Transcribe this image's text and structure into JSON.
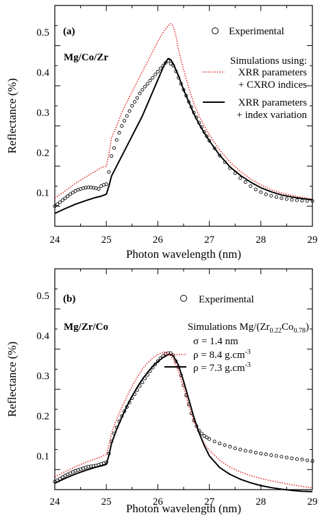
{
  "chart_data": [
    {
      "type": "line",
      "panel": "(a)",
      "sample": "Mg/Co/Zr",
      "xlabel": "Photon wavelength (nm)",
      "ylabel": "Reflectance (%)",
      "xlim": [
        24,
        29
      ],
      "ylim": [
        0.05,
        0.6
      ],
      "xticks": [
        24,
        25,
        26,
        27,
        28,
        29
      ],
      "yticks": [
        0.1,
        0.2,
        0.3,
        0.4,
        0.5
      ],
      "legend": {
        "experimental": "Experimental",
        "heading": "Simulations using:",
        "entries": [
          {
            "line1": "XRR parameters",
            "line2": "+ CXRO indices"
          },
          {
            "line1": "XRR parameters",
            "line2": "+ index variation"
          }
        ]
      },
      "series": [
        {
          "style": "markers",
          "color": "#000000",
          "x": [
            24.0,
            24.05,
            24.1,
            24.15,
            24.2,
            24.25,
            24.3,
            24.35,
            24.4,
            24.45,
            24.5,
            24.55,
            24.6,
            24.65,
            24.7,
            24.75,
            24.8,
            24.85,
            24.9,
            24.95,
            25.0,
            25.05,
            25.1,
            25.15,
            25.2,
            25.25,
            25.3,
            25.35,
            25.4,
            25.45,
            25.5,
            25.55,
            25.6,
            25.65,
            25.7,
            25.75,
            25.8,
            25.85,
            25.9,
            25.95,
            26.0,
            26.05,
            26.1,
            26.15,
            26.2,
            26.25,
            26.3,
            26.35,
            26.4,
            26.45,
            26.5,
            26.55,
            26.6,
            26.65,
            26.7,
            26.75,
            26.8,
            26.85,
            26.9,
            26.95,
            27.0,
            27.1,
            27.2,
            27.3,
            27.4,
            27.5,
            27.6,
            27.7,
            27.8,
            27.9,
            28.0,
            28.1,
            28.2,
            28.3,
            28.4,
            28.5,
            28.6,
            28.7,
            28.8,
            28.9,
            29.0
          ],
          "y": [
            0.1,
            0.105,
            0.11,
            0.115,
            0.12,
            0.125,
            0.13,
            0.134,
            0.138,
            0.141,
            0.143,
            0.145,
            0.146,
            0.147,
            0.147,
            0.146,
            0.145,
            0.143,
            0.15,
            0.153,
            0.155,
            0.185,
            0.225,
            0.245,
            0.265,
            0.283,
            0.3,
            0.313,
            0.325,
            0.337,
            0.35,
            0.36,
            0.37,
            0.381,
            0.39,
            0.398,
            0.405,
            0.413,
            0.42,
            0.428,
            0.435,
            0.443,
            0.45,
            0.457,
            0.462,
            0.455,
            0.45,
            0.436,
            0.42,
            0.405,
            0.39,
            0.375,
            0.36,
            0.347,
            0.333,
            0.321,
            0.308,
            0.297,
            0.285,
            0.274,
            0.263,
            0.244,
            0.226,
            0.21,
            0.195,
            0.182,
            0.17,
            0.16,
            0.15,
            0.142,
            0.135,
            0.13,
            0.126,
            0.123,
            0.12,
            0.118,
            0.116,
            0.115,
            0.114,
            0.113,
            0.113
          ]
        },
        {
          "style": "dotted",
          "color": "#e0201f",
          "x": [
            24.0,
            24.2,
            24.4,
            24.6,
            24.8,
            24.9,
            25.0,
            25.05,
            25.1,
            25.2,
            25.3,
            25.4,
            25.5,
            25.6,
            25.7,
            25.8,
            25.9,
            26.0,
            26.1,
            26.2,
            26.25,
            26.3,
            26.35,
            26.4,
            26.5,
            26.6,
            26.7,
            26.8,
            26.9,
            27.0,
            27.2,
            27.4,
            27.6,
            27.8,
            28.0,
            28.2,
            28.4,
            28.6,
            28.8,
            29.0
          ],
          "y": [
            0.12,
            0.138,
            0.157,
            0.173,
            0.188,
            0.196,
            0.2,
            0.23,
            0.27,
            0.3,
            0.333,
            0.36,
            0.385,
            0.41,
            0.435,
            0.46,
            0.485,
            0.51,
            0.533,
            0.55,
            0.555,
            0.548,
            0.525,
            0.49,
            0.44,
            0.395,
            0.355,
            0.325,
            0.3,
            0.278,
            0.24,
            0.21,
            0.187,
            0.168,
            0.153,
            0.141,
            0.133,
            0.127,
            0.122,
            0.118
          ]
        },
        {
          "style": "solid",
          "color": "#000000",
          "x": [
            24.0,
            24.2,
            24.4,
            24.6,
            24.8,
            24.9,
            25.0,
            25.05,
            25.1,
            25.2,
            25.3,
            25.4,
            25.5,
            25.6,
            25.7,
            25.8,
            25.9,
            26.0,
            26.1,
            26.15,
            26.2,
            26.25,
            26.3,
            26.4,
            26.5,
            26.6,
            26.7,
            26.8,
            26.9,
            27.0,
            27.2,
            27.4,
            27.6,
            27.8,
            28.0,
            28.2,
            28.4,
            28.6,
            28.8,
            29.0
          ],
          "y": [
            0.082,
            0.094,
            0.105,
            0.114,
            0.122,
            0.125,
            0.13,
            0.15,
            0.175,
            0.2,
            0.225,
            0.25,
            0.275,
            0.3,
            0.325,
            0.355,
            0.385,
            0.415,
            0.445,
            0.458,
            0.468,
            0.465,
            0.455,
            0.425,
            0.39,
            0.36,
            0.33,
            0.305,
            0.283,
            0.263,
            0.227,
            0.198,
            0.177,
            0.16,
            0.146,
            0.136,
            0.128,
            0.123,
            0.119,
            0.116
          ]
        }
      ]
    },
    {
      "type": "line",
      "panel": "(b)",
      "sample": "Mg/Zr/Co",
      "xlabel": "Photon wavelength (nm)",
      "ylabel": "Reflectance (%)",
      "xlim": [
        24,
        29
      ],
      "ylim": [
        0.05,
        0.6
      ],
      "xticks": [
        24,
        25,
        26,
        27,
        28,
        29
      ],
      "yticks": [
        0.1,
        0.2,
        0.3,
        0.4,
        0.5
      ],
      "legend": {
        "experimental": "Experimental",
        "heading_prefix": "Simulations Mg/(Zr",
        "heading_sub1": "0.22",
        "heading_mid": "Co",
        "heading_sub2": "0.78",
        "heading_suffix": ")",
        "sigma": "σ = 1.4 nm",
        "entries": [
          {
            "text": "ρ = 8.4 g.cm",
            "sup": "-3"
          },
          {
            "text": "ρ = 7.3 g.cm",
            "sup": "-3"
          }
        ]
      },
      "series": [
        {
          "style": "markers",
          "color": "#000000",
          "x": [
            24.0,
            24.05,
            24.1,
            24.15,
            24.2,
            24.25,
            24.3,
            24.35,
            24.4,
            24.45,
            24.5,
            24.55,
            24.6,
            24.65,
            24.7,
            24.75,
            24.8,
            24.85,
            24.9,
            24.95,
            25.0,
            25.05,
            25.1,
            25.15,
            25.2,
            25.25,
            25.3,
            25.35,
            25.4,
            25.45,
            25.5,
            25.55,
            25.6,
            25.65,
            25.7,
            25.75,
            25.8,
            25.85,
            25.9,
            25.95,
            26.0,
            26.05,
            26.1,
            26.15,
            26.2,
            26.25,
            26.3,
            26.35,
            26.4,
            26.45,
            26.5,
            26.55,
            26.6,
            26.65,
            26.7,
            26.75,
            26.8,
            26.85,
            26.9,
            26.95,
            27.0,
            27.1,
            27.2,
            27.3,
            27.4,
            27.5,
            27.6,
            27.7,
            27.8,
            27.9,
            28.0,
            28.1,
            28.2,
            28.3,
            28.4,
            28.5,
            28.6,
            28.7,
            28.8,
            28.9,
            29.0
          ],
          "y": [
            0.07,
            0.073,
            0.077,
            0.081,
            0.085,
            0.088,
            0.091,
            0.094,
            0.097,
            0.099,
            0.101,
            0.103,
            0.105,
            0.107,
            0.108,
            0.109,
            0.11,
            0.112,
            0.114,
            0.116,
            0.118,
            0.14,
            0.17,
            0.19,
            0.205,
            0.22,
            0.233,
            0.245,
            0.256,
            0.267,
            0.278,
            0.288,
            0.298,
            0.308,
            0.317,
            0.327,
            0.336,
            0.345,
            0.354,
            0.362,
            0.37,
            0.377,
            0.383,
            0.388,
            0.39,
            0.39,
            0.385,
            0.37,
            0.355,
            0.335,
            0.31,
            0.285,
            0.262,
            0.24,
            0.222,
            0.208,
            0.197,
            0.19,
            0.184,
            0.18,
            0.176,
            0.17,
            0.165,
            0.161,
            0.157,
            0.153,
            0.15,
            0.147,
            0.145,
            0.142,
            0.14,
            0.138,
            0.136,
            0.134,
            0.132,
            0.13,
            0.128,
            0.126,
            0.125,
            0.123,
            0.121
          ]
        },
        {
          "style": "dotted",
          "color": "#e0201f",
          "x": [
            24.0,
            24.2,
            24.4,
            24.6,
            24.8,
            24.9,
            25.0,
            25.05,
            25.1,
            25.2,
            25.3,
            25.4,
            25.5,
            25.6,
            25.7,
            25.8,
            25.9,
            26.0,
            26.1,
            26.15,
            26.2,
            26.3,
            26.4,
            26.5,
            26.6,
            26.7,
            26.8,
            26.9,
            27.0,
            27.2,
            27.4,
            27.6,
            27.8,
            28.0,
            28.2,
            28.4,
            28.6,
            28.8,
            29.0
          ],
          "y": [
            0.082,
            0.095,
            0.107,
            0.118,
            0.127,
            0.132,
            0.138,
            0.16,
            0.19,
            0.225,
            0.255,
            0.282,
            0.307,
            0.33,
            0.35,
            0.366,
            0.378,
            0.387,
            0.392,
            0.393,
            0.39,
            0.375,
            0.345,
            0.305,
            0.26,
            0.22,
            0.19,
            0.165,
            0.148,
            0.123,
            0.106,
            0.094,
            0.085,
            0.078,
            0.072,
            0.067,
            0.062,
            0.058,
            0.055
          ]
        },
        {
          "style": "solid",
          "color": "#000000",
          "x": [
            24.0,
            24.2,
            24.4,
            24.6,
            24.8,
            24.9,
            25.0,
            25.05,
            25.1,
            25.2,
            25.3,
            25.4,
            25.5,
            25.6,
            25.7,
            25.8,
            25.9,
            26.0,
            26.1,
            26.2,
            26.25,
            26.3,
            26.4,
            26.5,
            26.6,
            26.7,
            26.8,
            26.9,
            27.0,
            27.2,
            27.4,
            27.6,
            27.8,
            28.0,
            28.2,
            28.4,
            28.6,
            28.8,
            29.0
          ],
          "y": [
            0.066,
            0.078,
            0.089,
            0.098,
            0.106,
            0.109,
            0.113,
            0.135,
            0.165,
            0.2,
            0.23,
            0.258,
            0.283,
            0.305,
            0.325,
            0.342,
            0.357,
            0.369,
            0.379,
            0.386,
            0.387,
            0.383,
            0.36,
            0.32,
            0.275,
            0.23,
            0.192,
            0.16,
            0.134,
            0.105,
            0.088,
            0.076,
            0.067,
            0.06,
            0.055,
            0.051,
            0.048,
            0.046,
            0.045
          ]
        }
      ]
    }
  ]
}
